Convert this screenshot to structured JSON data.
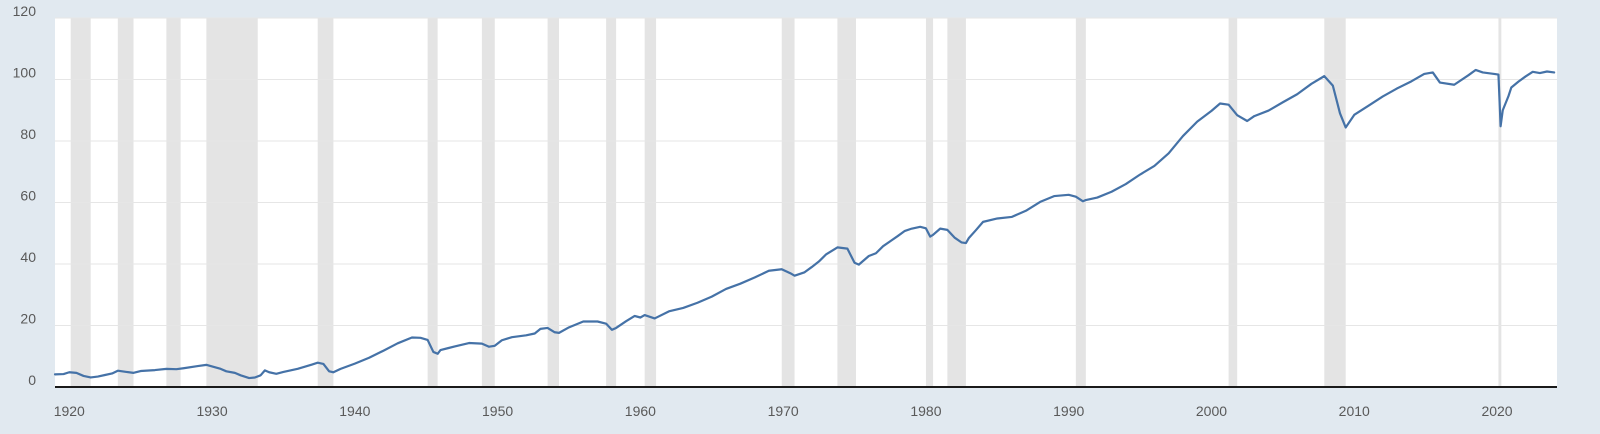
{
  "chart_data": {
    "type": "line",
    "title": "",
    "xlabel": "",
    "ylabel": "",
    "xlim": [
      1919.0,
      2024.2
    ],
    "ylim": [
      0,
      120
    ],
    "yticks": [
      0,
      20,
      40,
      60,
      80,
      100,
      120
    ],
    "xticks": [
      1920,
      1930,
      1940,
      1950,
      1960,
      1970,
      1980,
      1990,
      2000,
      2010,
      2020
    ],
    "grid": true,
    "legend": "none",
    "colors": {
      "line": "#4572a7",
      "recession": "#e4e4e4",
      "plot_background": "#ffffff",
      "page_background": "#e1e9f0",
      "axis": "#1a1a1a",
      "gridline": "#e6e6e6"
    },
    "recessions": [
      [
        1920.1,
        1921.5
      ],
      [
        1923.4,
        1924.5
      ],
      [
        1926.8,
        1927.8
      ],
      [
        1929.6,
        1933.2
      ],
      [
        1937.4,
        1938.5
      ],
      [
        1945.1,
        1945.8
      ],
      [
        1948.9,
        1949.8
      ],
      [
        1953.5,
        1954.3
      ],
      [
        1957.6,
        1958.3
      ],
      [
        1960.3,
        1961.1
      ],
      [
        1969.9,
        1970.8
      ],
      [
        1973.8,
        1975.1
      ],
      [
        1980.0,
        1980.5
      ],
      [
        1981.5,
        1982.8
      ],
      [
        1990.5,
        1991.2
      ],
      [
        2001.2,
        2001.8
      ],
      [
        2007.9,
        2009.4
      ],
      [
        2020.1,
        2020.3
      ]
    ],
    "series": [
      {
        "x": [
          1919,
          1919.6,
          1920.0,
          1920.5,
          1921.0,
          1921.5,
          1922.0,
          1922.5,
          1923.0,
          1923.4,
          1924.0,
          1924.5,
          1925.0,
          1926.0,
          1926.8,
          1927.5,
          1928.0,
          1929.0,
          1929.6,
          1930.0,
          1930.6,
          1931.0,
          1931.6,
          1932.0,
          1932.6,
          1933.0,
          1933.4,
          1933.7,
          1934.0,
          1934.5,
          1935.0,
          1936.0,
          1937.0,
          1937.4,
          1937.8,
          1938.2,
          1938.5,
          1939.0,
          1940.0,
          1941.0,
          1942.0,
          1943.0,
          1944.0,
          1944.6,
          1945.1,
          1945.5,
          1945.8,
          1946.0,
          1946.5,
          1947.0,
          1948.0,
          1948.9,
          1949.4,
          1949.8,
          1950.3,
          1951.0,
          1952.0,
          1952.6,
          1953.0,
          1953.5,
          1954.0,
          1954.3,
          1955.0,
          1956.0,
          1957.0,
          1957.6,
          1958.0,
          1958.3,
          1959.0,
          1959.6,
          1960.0,
          1960.3,
          1961.0,
          1962.0,
          1963.0,
          1964.0,
          1965.0,
          1966.0,
          1967.0,
          1968.0,
          1969.0,
          1969.9,
          1970.5,
          1970.8,
          1971.5,
          1972.0,
          1972.5,
          1973.0,
          1973.8,
          1974.5,
          1975.0,
          1975.3,
          1976.0,
          1976.5,
          1977.0,
          1977.5,
          1978.0,
          1978.5,
          1979.0,
          1979.6,
          1980.0,
          1980.3,
          1980.5,
          1981.0,
          1981.5,
          1982.0,
          1982.5,
          1982.8,
          1983.0,
          1983.5,
          1984.0,
          1985.0,
          1986.0,
          1987.0,
          1988.0,
          1989.0,
          1990.0,
          1990.5,
          1991.0,
          1991.2,
          1992.0,
          1993.0,
          1994.0,
          1995.0,
          1996.0,
          1997.0,
          1998.0,
          1999.0,
          2000.0,
          2000.6,
          2001.2,
          2001.8,
          2002.5,
          2003.0,
          2004.0,
          2005.0,
          2006.0,
          2007.0,
          2007.9,
          2008.5,
          2009.0,
          2009.4,
          2010.0,
          2011.0,
          2012.0,
          2013.0,
          2014.0,
          2014.9,
          2015.5,
          2016.0,
          2017.0,
          2018.0,
          2018.5,
          2019.0,
          2019.8,
          2020.1,
          2020.25,
          2020.4,
          2020.8,
          2021.0,
          2021.5,
          2022.0,
          2022.5,
          2023.0,
          2023.5,
          2024.0
        ],
        "values": [
          4.1,
          4.2,
          4.8,
          4.6,
          3.6,
          3.1,
          3.4,
          3.9,
          4.4,
          5.3,
          4.9,
          4.6,
          5.2,
          5.5,
          5.9,
          5.8,
          6.1,
          6.8,
          7.2,
          6.7,
          5.9,
          5.1,
          4.6,
          3.8,
          2.9,
          3.1,
          3.8,
          5.4,
          4.8,
          4.3,
          4.9,
          5.9,
          7.3,
          7.9,
          7.5,
          5.1,
          4.8,
          5.9,
          7.6,
          9.5,
          11.8,
          14.2,
          16.1,
          16.0,
          15.3,
          11.4,
          10.8,
          12.0,
          12.6,
          13.2,
          14.3,
          14.1,
          13.1,
          13.4,
          15.2,
          16.2,
          16.8,
          17.4,
          18.9,
          19.2,
          17.8,
          17.6,
          19.4,
          21.3,
          21.3,
          20.6,
          18.6,
          19.2,
          21.4,
          23.1,
          22.6,
          23.4,
          22.3,
          24.6,
          25.7,
          27.4,
          29.4,
          31.9,
          33.6,
          35.6,
          37.8,
          38.3,
          37.0,
          36.2,
          37.3,
          39.0,
          40.8,
          43.1,
          45.4,
          45.0,
          40.4,
          39.8,
          42.6,
          43.5,
          45.8,
          47.4,
          49.0,
          50.7,
          51.5,
          52.1,
          51.6,
          48.9,
          49.5,
          51.5,
          51.1,
          48.6,
          47.0,
          46.8,
          48.4,
          51.0,
          53.7,
          54.8,
          55.3,
          57.3,
          60.2,
          62.1,
          62.5,
          61.9,
          60.4,
          60.8,
          61.6,
          63.5,
          66.0,
          69.1,
          71.9,
          76.0,
          81.6,
          86.3,
          89.8,
          92.2,
          91.8,
          88.4,
          86.5,
          88.1,
          89.9,
          92.6,
          95.2,
          98.6,
          101.1,
          98.0,
          89.0,
          84.4,
          88.5,
          91.5,
          94.5,
          97.1,
          99.4,
          101.8,
          102.3,
          99.0,
          98.3,
          101.4,
          103.1,
          102.3,
          101.8,
          101.6,
          84.8,
          90.0,
          94.6,
          97.4,
          99.3,
          101.0,
          102.5,
          102.1,
          102.6,
          102.3
        ]
      }
    ]
  }
}
